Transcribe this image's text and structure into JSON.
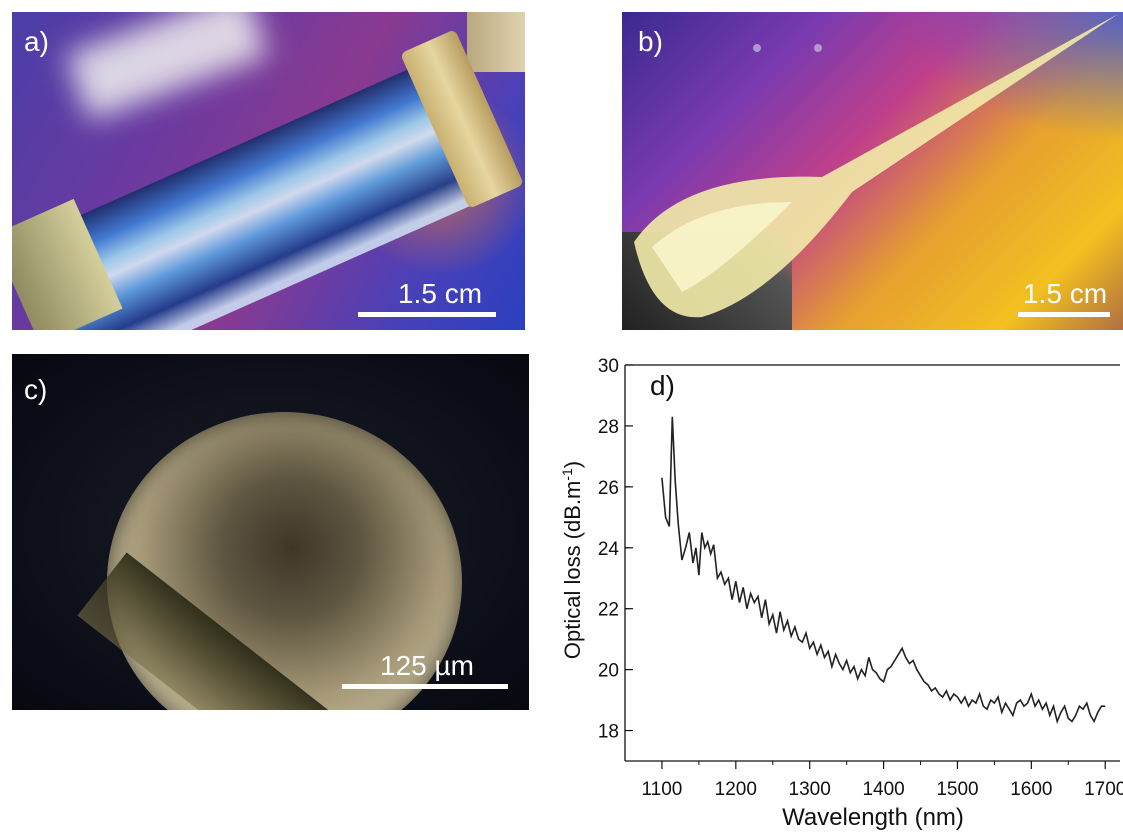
{
  "panels": {
    "a": {
      "label": "a)",
      "scalebar": "1.5 cm"
    },
    "b": {
      "label": "b)",
      "scalebar": "1.5 cm"
    },
    "c": {
      "label": "c)",
      "scalebar": "125 µm"
    },
    "d": {
      "label": "d)"
    }
  },
  "chart_data": {
    "type": "line",
    "panel_label": "d)",
    "title": "",
    "xlabel": "Wavelength (nm)",
    "ylabel": "Optical loss (dB.m-1)",
    "xlim": [
      1050,
      1720
    ],
    "ylim": [
      17,
      30
    ],
    "xticks": [
      1100,
      1200,
      1300,
      1400,
      1500,
      1600,
      1700
    ],
    "yticks": [
      18,
      20,
      22,
      24,
      26,
      28,
      30
    ],
    "grid": false,
    "x": [
      1100,
      1105,
      1110,
      1114,
      1118,
      1122,
      1127,
      1132,
      1137,
      1142,
      1146,
      1150,
      1154,
      1158,
      1162,
      1166,
      1170,
      1175,
      1180,
      1185,
      1190,
      1195,
      1200,
      1205,
      1210,
      1215,
      1220,
      1225,
      1230,
      1235,
      1240,
      1245,
      1250,
      1255,
      1260,
      1265,
      1270,
      1275,
      1280,
      1285,
      1290,
      1295,
      1300,
      1305,
      1310,
      1315,
      1320,
      1325,
      1330,
      1335,
      1340,
      1345,
      1350,
      1355,
      1360,
      1365,
      1370,
      1375,
      1380,
      1385,
      1390,
      1395,
      1400,
      1405,
      1410,
      1415,
      1420,
      1425,
      1430,
      1435,
      1440,
      1445,
      1450,
      1455,
      1460,
      1465,
      1470,
      1475,
      1480,
      1485,
      1490,
      1495,
      1500,
      1505,
      1510,
      1515,
      1520,
      1525,
      1530,
      1535,
      1540,
      1545,
      1550,
      1555,
      1560,
      1565,
      1570,
      1575,
      1580,
      1585,
      1590,
      1595,
      1600,
      1605,
      1610,
      1615,
      1620,
      1625,
      1630,
      1635,
      1640,
      1645,
      1650,
      1655,
      1660,
      1665,
      1670,
      1675,
      1680,
      1685,
      1690,
      1695,
      1700
    ],
    "y": [
      26.3,
      25.0,
      24.7,
      28.3,
      26.2,
      24.8,
      23.6,
      24.0,
      24.5,
      23.5,
      24.0,
      23.1,
      24.5,
      24.0,
      24.2,
      23.8,
      24.1,
      23.0,
      23.2,
      22.8,
      23.0,
      22.3,
      22.9,
      22.2,
      22.7,
      22.0,
      22.5,
      22.2,
      22.4,
      21.7,
      22.3,
      21.5,
      21.8,
      21.2,
      21.9,
      21.3,
      21.6,
      21.1,
      21.4,
      21.0,
      20.9,
      21.2,
      20.7,
      20.9,
      20.5,
      20.8,
      20.4,
      20.6,
      20.1,
      20.5,
      20.2,
      20.0,
      20.3,
      19.9,
      20.1,
      19.7,
      20.0,
      19.8,
      20.4,
      20.0,
      19.9,
      19.7,
      19.6,
      20.0,
      20.1,
      20.3,
      20.5,
      20.7,
      20.4,
      20.2,
      20.3,
      20.0,
      19.8,
      19.6,
      19.5,
      19.3,
      19.4,
      19.2,
      19.1,
      19.3,
      19.0,
      19.2,
      19.1,
      18.9,
      19.1,
      18.8,
      19.0,
      18.9,
      19.2,
      18.8,
      18.7,
      19.0,
      18.9,
      19.1,
      18.6,
      18.9,
      18.7,
      18.5,
      18.9,
      19.0,
      18.8,
      18.9,
      19.2,
      18.8,
      19.0,
      18.7,
      18.9,
      18.5,
      18.8,
      18.3,
      18.6,
      18.8,
      18.4,
      18.3,
      18.5,
      18.8,
      18.7,
      18.9,
      18.5,
      18.3,
      18.6,
      18.8,
      18.8
    ]
  }
}
